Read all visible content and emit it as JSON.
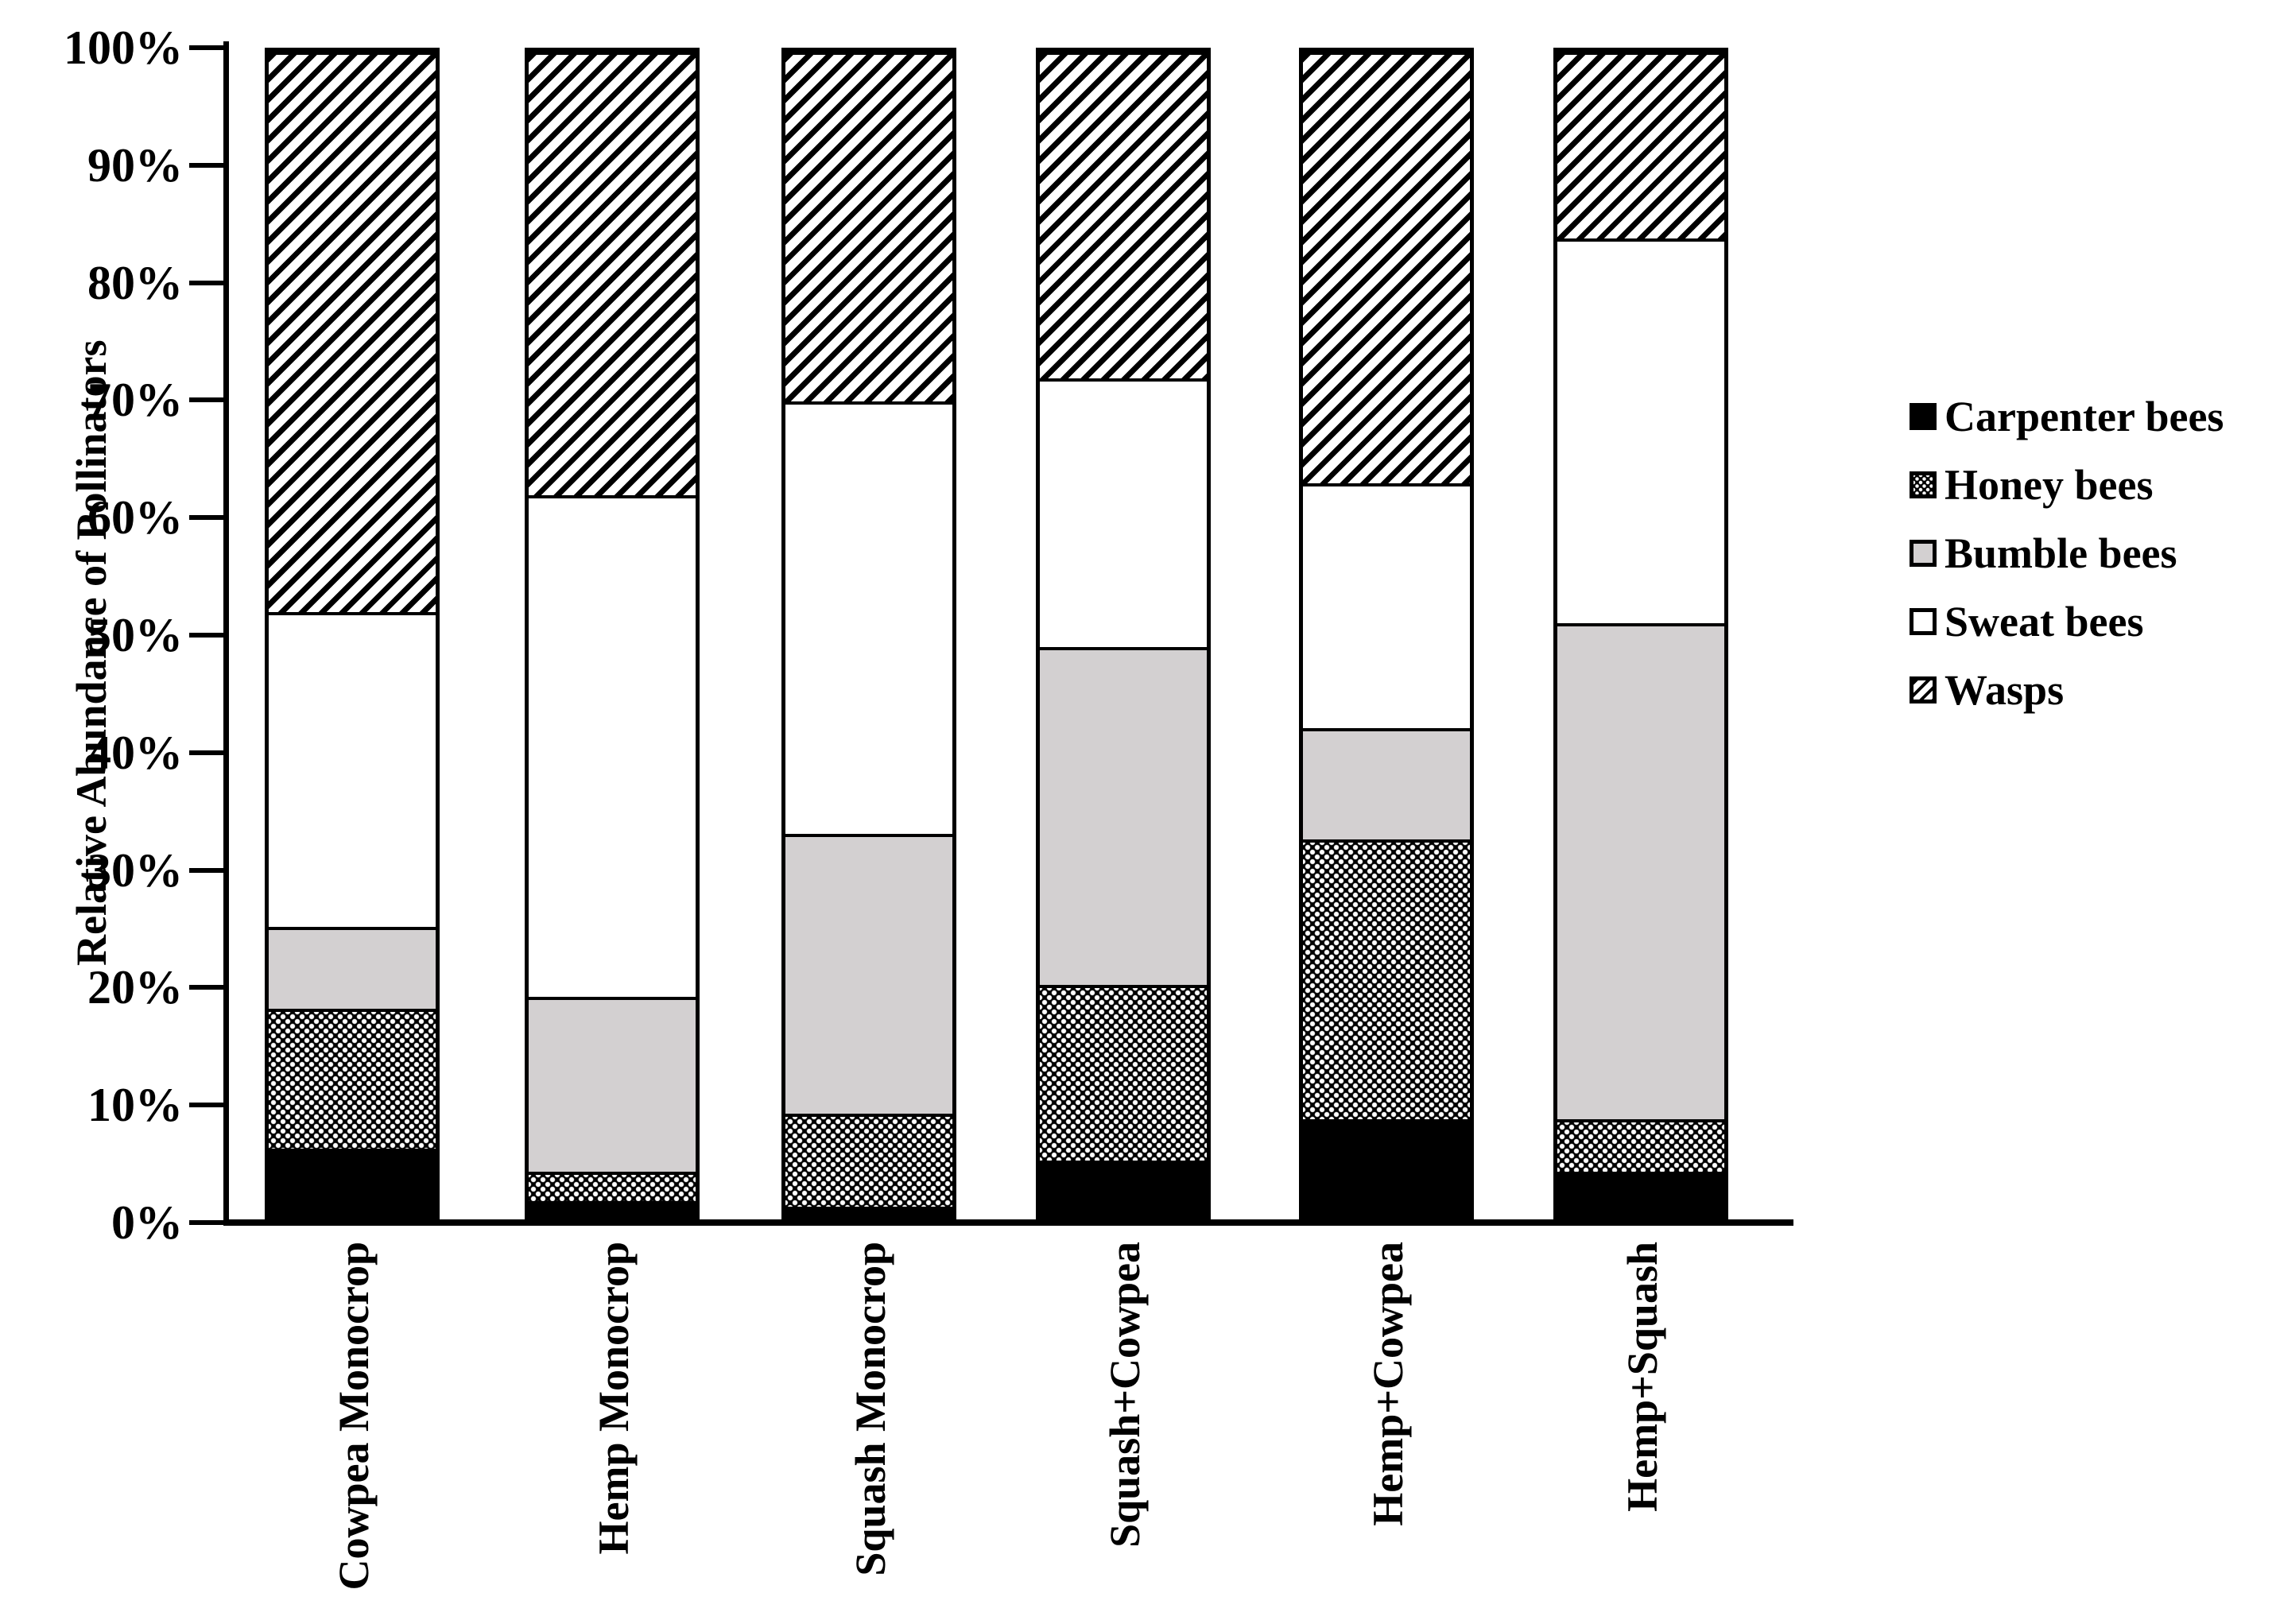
{
  "figure": {
    "description": "Stacked bar chart of relative abundance of pollinators across six cropping treatments"
  },
  "y_axis": {
    "title": "Relative Abundance of Pollinators",
    "tick_labels": [
      "0%",
      "10%",
      "20%",
      "30%",
      "40%",
      "50%",
      "60%",
      "70%",
      "80%",
      "90%",
      "100%"
    ]
  },
  "legend": {
    "position": "right",
    "items": [
      {
        "label": "Carpenter bees",
        "swatch": "solid-black"
      },
      {
        "label": "Honey bees",
        "swatch": "checker-dots"
      },
      {
        "label": "Bumble bees",
        "swatch": "light-gray"
      },
      {
        "label": "Sweat bees",
        "swatch": "white"
      },
      {
        "label": "Wasps",
        "swatch": "diagonal-hatch"
      }
    ]
  },
  "colors": {
    "black": "#000000",
    "light_gray": "#d3d0d1",
    "white": "#ffffff"
  },
  "chart_data": {
    "type": "bar",
    "stacked": true,
    "categories": [
      "Cowpea Monocrop",
      "Hemp Monocrop",
      "Squash Monocrop",
      "Squash+Cowpea",
      "Hemp+Cowpea",
      "Hemp+Squash"
    ],
    "series": [
      {
        "name": "Carpenter bees",
        "values": [
          6,
          1.5,
          1,
          5,
          8.5,
          4
        ]
      },
      {
        "name": "Honey bees",
        "values": [
          12,
          2.5,
          8,
          15,
          24,
          4.5
        ]
      },
      {
        "name": "Bumble bees",
        "values": [
          7,
          15,
          24,
          29,
          9.5,
          42.5
        ]
      },
      {
        "name": "Sweat bees",
        "values": [
          27,
          43,
          37,
          23,
          21,
          33
        ]
      },
      {
        "name": "Wasps",
        "values": [
          48,
          38,
          30,
          28,
          37,
          16
        ]
      }
    ],
    "xlabel": "",
    "ylabel": "Relative Abundance of Pollinators",
    "ylim": [
      0,
      100
    ],
    "grid": false,
    "legend_position": "right"
  }
}
